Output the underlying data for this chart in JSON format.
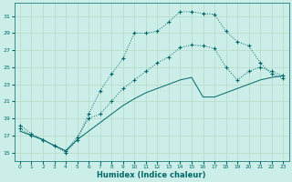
{
  "xlabel": "Humidex (Indice chaleur)",
  "bg_color": "#cceee8",
  "line_color": "#006868",
  "grid_color": "#bbddcc",
  "xlim": [
    -0.5,
    23.5
  ],
  "ylim": [
    14,
    32.5
  ],
  "yticks": [
    15,
    17,
    19,
    21,
    23,
    25,
    27,
    29,
    31
  ],
  "xticks": [
    0,
    1,
    2,
    3,
    4,
    5,
    6,
    7,
    8,
    9,
    10,
    11,
    12,
    13,
    14,
    15,
    16,
    17,
    18,
    19,
    20,
    21,
    22,
    23
  ],
  "line1_x": [
    0,
    1,
    2,
    3,
    4,
    5,
    6,
    7,
    8,
    9,
    10,
    11,
    12,
    13,
    14,
    15,
    16,
    17,
    18,
    19,
    20,
    21,
    22,
    23
  ],
  "line1_y": [
    18.2,
    17.2,
    16.5,
    15.8,
    15.0,
    16.5,
    19.5,
    22.2,
    24.2,
    26.0,
    29.0,
    29.0,
    29.2,
    30.3,
    31.5,
    31.5,
    31.3,
    31.2,
    29.2,
    28.0,
    27.5,
    25.5,
    24.2,
    23.7
  ],
  "line2_x": [
    0,
    1,
    2,
    3,
    4,
    5,
    6,
    7,
    8,
    9,
    10,
    11,
    12,
    13,
    14,
    15,
    16,
    17,
    18,
    19,
    20,
    21,
    22,
    23
  ],
  "line2_y": [
    17.5,
    17.0,
    16.5,
    15.8,
    15.2,
    16.5,
    17.5,
    18.5,
    19.5,
    20.5,
    21.3,
    22.0,
    22.5,
    23.0,
    23.5,
    23.8,
    21.5,
    21.5,
    22.0,
    22.5,
    23.0,
    23.5,
    23.8,
    24.0
  ],
  "line3_x": [
    0,
    1,
    2,
    3,
    4,
    5,
    6,
    7,
    8,
    9,
    10,
    11,
    12,
    13,
    14,
    15,
    16,
    17,
    18,
    19,
    20,
    21,
    22,
    23
  ],
  "line3_y": [
    17.8,
    17.0,
    16.5,
    15.8,
    15.2,
    16.8,
    19.0,
    19.5,
    21.0,
    22.5,
    23.5,
    24.5,
    25.5,
    26.2,
    27.3,
    27.6,
    27.5,
    27.2,
    25.0,
    23.5,
    24.5,
    25.0,
    24.5,
    24.0
  ]
}
